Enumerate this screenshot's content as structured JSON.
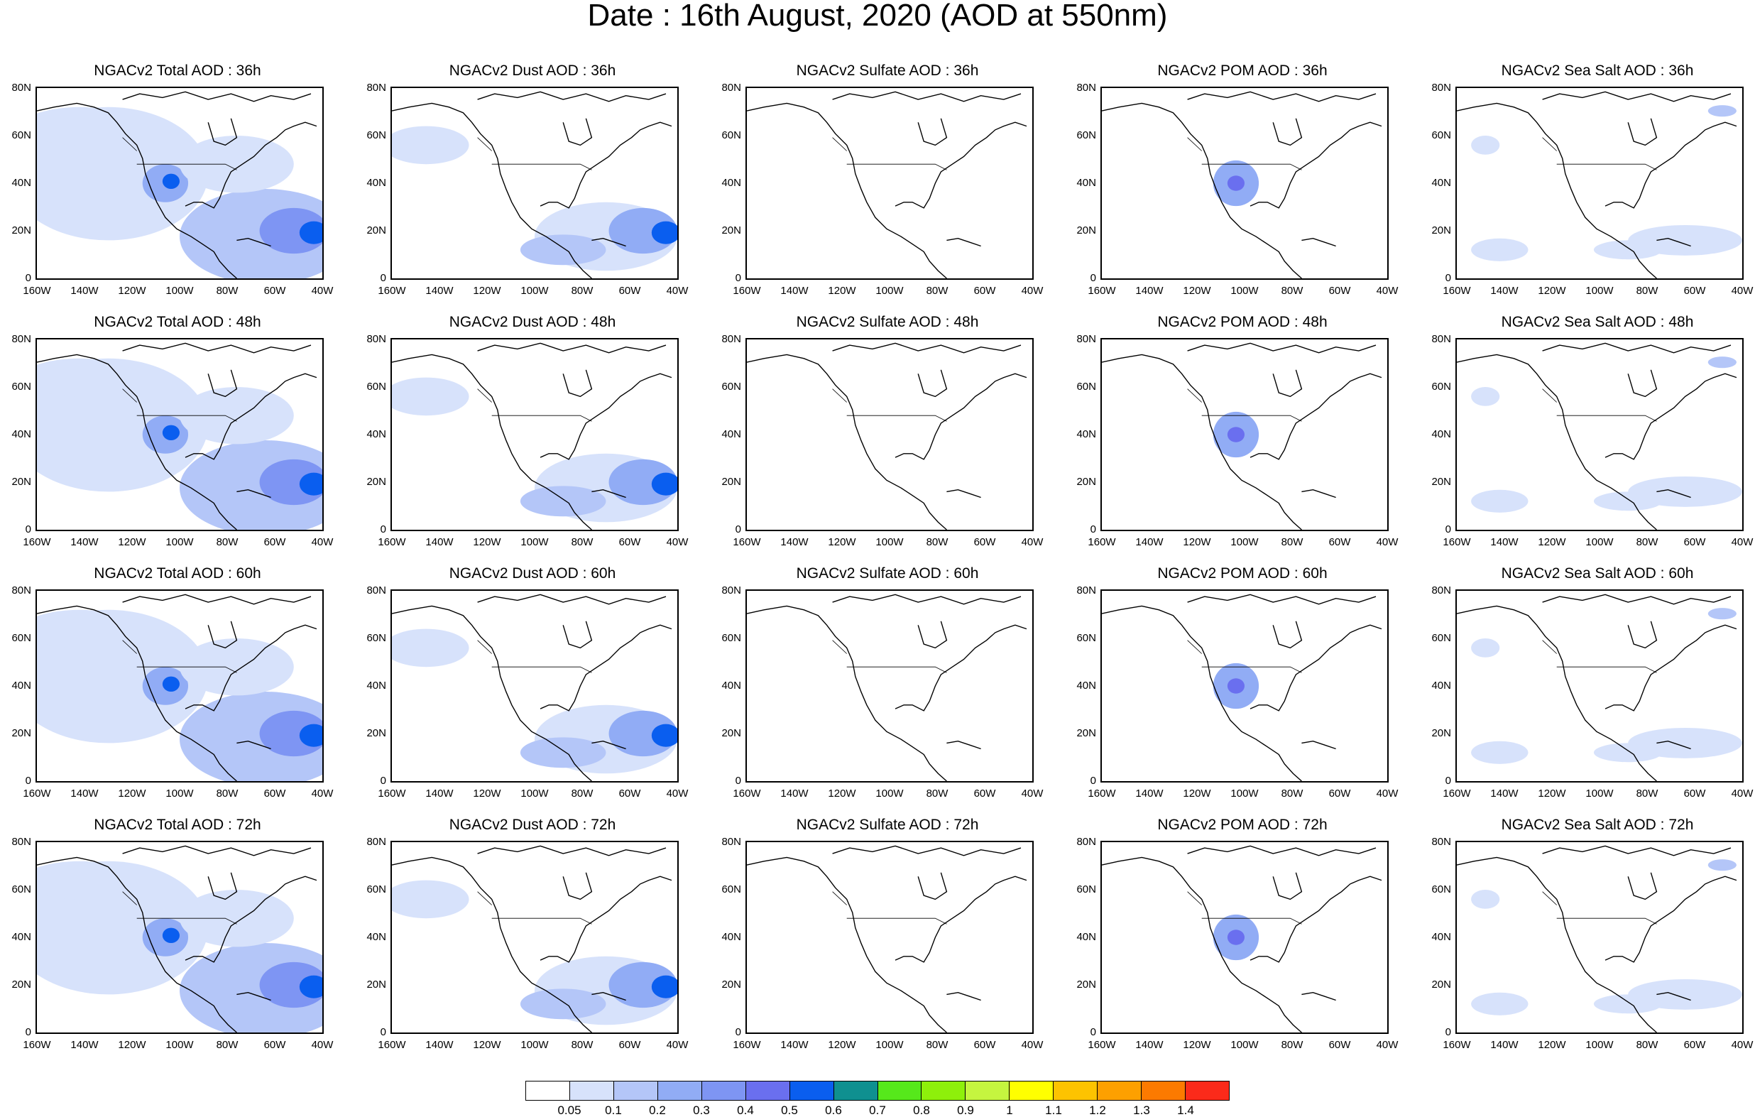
{
  "title": "Date : 16th August, 2020 (AOD at 550nm)",
  "panel_titles": [
    [
      "NGACv2 Total AOD : 36h",
      "NGACv2 Dust AOD : 36h",
      "NGACv2 Sulfate AOD : 36h",
      "NGACv2 POM AOD : 36h",
      "NGACv2 Sea Salt AOD : 36h"
    ],
    [
      "NGACv2 Total AOD : 48h",
      "NGACv2 Dust AOD : 48h",
      "NGACv2 Sulfate AOD : 48h",
      "NGACv2 POM AOD : 48h",
      "NGACv2 Sea Salt AOD : 48h"
    ],
    [
      "NGACv2 Total AOD : 60h",
      "NGACv2 Dust AOD : 60h",
      "NGACv2 Sulfate AOD : 60h",
      "NGACv2 POM AOD : 60h",
      "NGACv2 Sea Salt AOD : 60h"
    ],
    [
      "NGACv2 Total AOD : 72h",
      "NGACv2 Dust AOD : 72h",
      "NGACv2 Sulfate AOD : 72h",
      "NGACv2 POM AOD : 72h",
      "NGACv2 Sea Salt  AOD : 72h"
    ]
  ],
  "lat_labels": [
    "80N",
    "60N",
    "40N",
    "20N",
    "0"
  ],
  "lon_labels": [
    "160W",
    "140W",
    "120W",
    "100W",
    "80W",
    "60W",
    "40W"
  ],
  "colorbar": {
    "colors": [
      "#ffffff",
      "#d7e2fb",
      "#b4c6f8",
      "#91acf5",
      "#7e95f3",
      "#6a6fef",
      "#0a5eef",
      "#0f9090",
      "#56e81b",
      "#8ef00b",
      "#c5f53f",
      "#ffff00",
      "#fdc300",
      "#fda000",
      "#fc7a00",
      "#fb2a1a"
    ],
    "labels": [
      "0.05",
      "0.1",
      "0.2",
      "0.3",
      "0.4",
      "0.5",
      "0.6",
      "0.7",
      "0.8",
      "0.9",
      "1",
      "1.1",
      "1.2",
      "1.3",
      "1.4"
    ]
  },
  "colors": {
    "ocean": "#ffffff",
    "coast": "#000000"
  }
}
